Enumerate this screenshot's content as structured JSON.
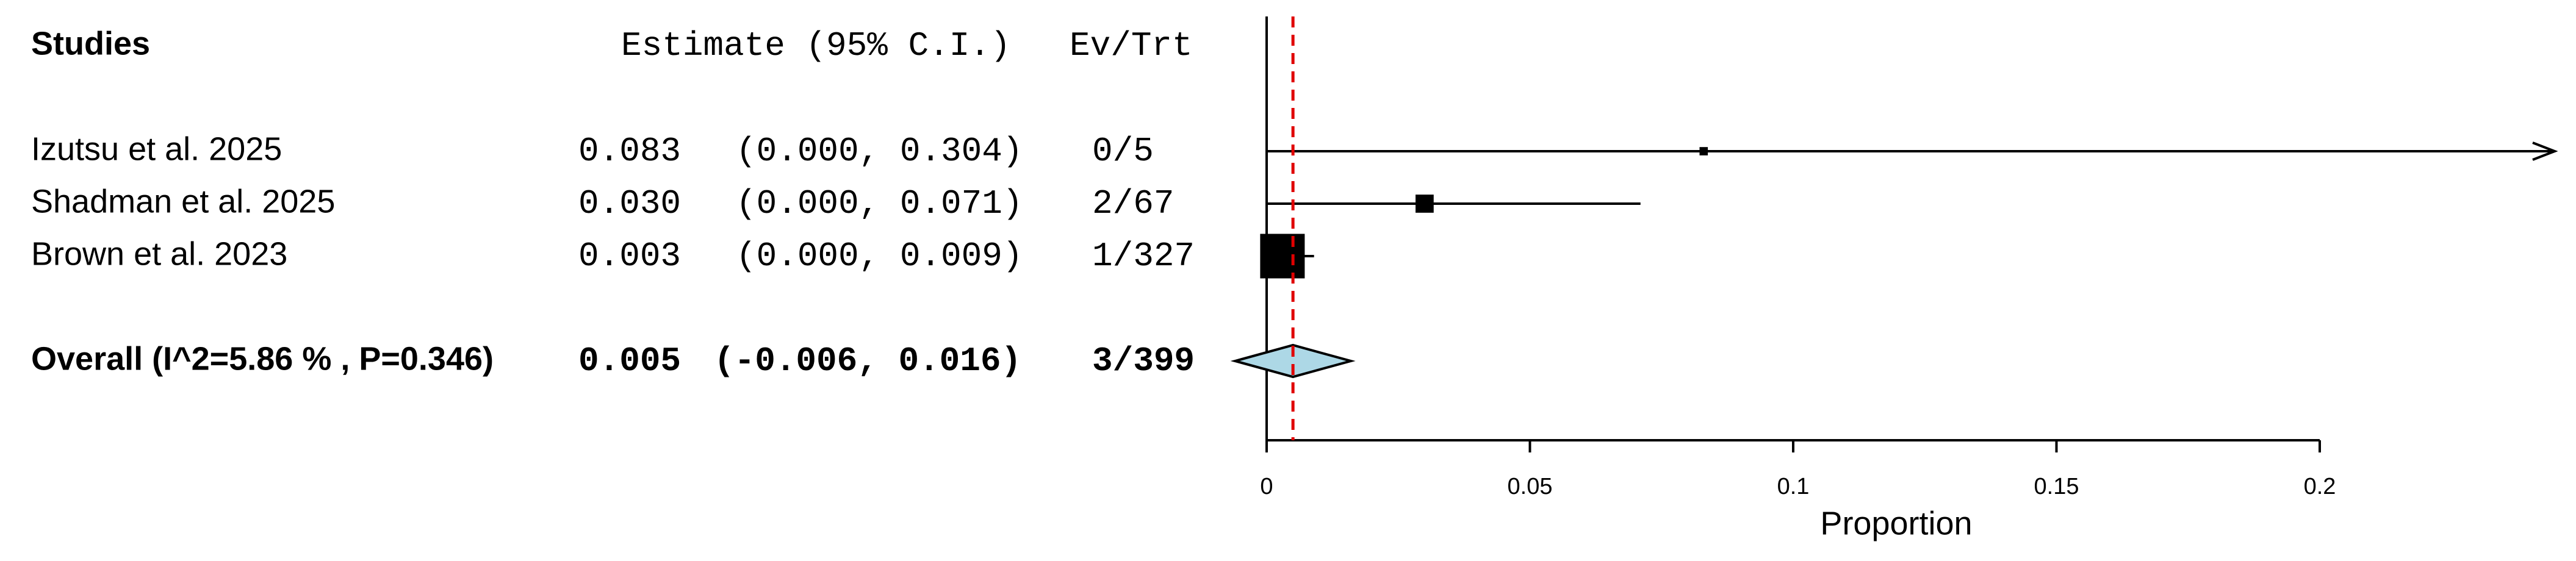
{
  "chart_data": {
    "type": "forest",
    "headers": {
      "studies": "Studies",
      "estimate": "Estimate (95% C.I.)",
      "events": "Ev/Trt"
    },
    "studies": [
      "Izutsu et al. 2025",
      "Shadman et al. 2025",
      "Brown et al. 2023"
    ],
    "values": [
      0.083,
      0.03,
      0.003
    ],
    "value_labels": [
      "0.083",
      "0.030",
      "0.003"
    ],
    "lower": [
      0,
      0,
      0
    ],
    "upper": [
      0.304,
      0.071,
      0.009
    ],
    "ci_labels": [
      "(0.000, 0.304)",
      "(0.000, 0.071)",
      "(0.000, 0.009)"
    ],
    "events": [
      "0/5",
      "2/67",
      "1/327"
    ],
    "weights": [
      2.9,
      13.8,
      83.3
    ],
    "overall": {
      "label": "Overall (I^2=5.86 % , P=0.346)",
      "value": 0.005,
      "value_label": "0.005",
      "lower": -0.006,
      "upper": 0.016,
      "ci_label": "(-0.006, 0.016)",
      "events": "3/399"
    },
    "xlabel": "Proportion",
    "xlim": [
      0,
      0.2
    ],
    "xticks": [
      0,
      0.05,
      0.1,
      0.15,
      0.2
    ],
    "color": "#000000",
    "diamond_color": "#add8e6",
    "reference_color": "#e00000"
  }
}
